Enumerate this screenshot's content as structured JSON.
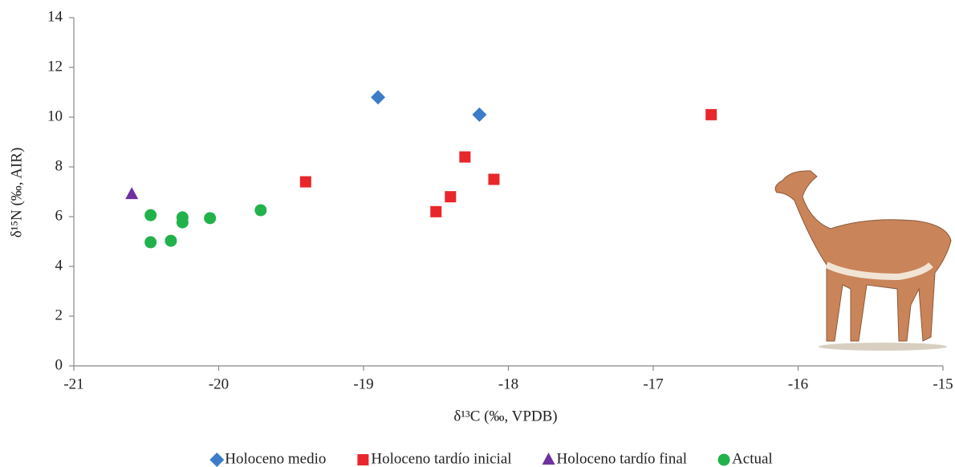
{
  "chart_data": {
    "type": "scatter",
    "xlabel": "δ¹³C (‰, VPDB)",
    "ylabel": "δ¹⁵N (‰, AIR)",
    "xlim": [
      -21,
      -15
    ],
    "xticks": [
      -21,
      -20,
      -19,
      -18,
      -17,
      -16,
      -15
    ],
    "ylim": [
      0,
      14
    ],
    "yticks": [
      0,
      2,
      4,
      6,
      8,
      10,
      12,
      14
    ],
    "grid": false,
    "legend": "bottom",
    "series": [
      {
        "name": "Holoceno medio",
        "color": "#3c7cc8",
        "marker": "diamond",
        "x": [
          -18.9,
          -18.2
        ],
        "values": [
          10.8,
          10.1
        ]
      },
      {
        "name": "Holoceno tardío inicial",
        "color": "#e8262b",
        "marker": "square",
        "x": [
          -19.4,
          -18.5,
          -18.4,
          -18.3,
          -18.1,
          -16.6
        ],
        "values": [
          7.4,
          6.2,
          6.8,
          8.4,
          7.5,
          10.1
        ]
      },
      {
        "name": "Holoceno tardío final",
        "color": "#7030a0",
        "marker": "triangle",
        "x": [
          -20.6
        ],
        "values": [
          6.9
        ]
      },
      {
        "name": "Actual",
        "color": "#22b24c",
        "marker": "circle",
        "x": [
          -20.47,
          -20.47,
          -20.33,
          -20.25,
          -20.25,
          -20.06,
          -19.71
        ],
        "values": [
          6.06,
          4.97,
          5.03,
          5.97,
          5.77,
          5.94,
          6.26
        ]
      }
    ]
  }
}
